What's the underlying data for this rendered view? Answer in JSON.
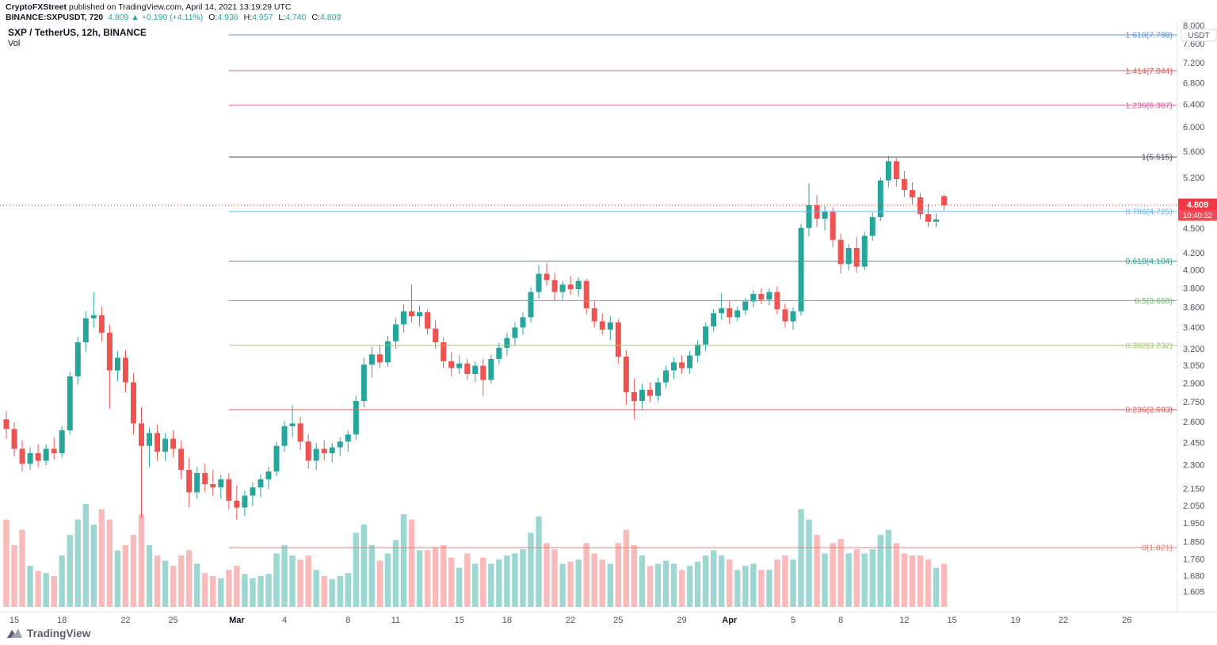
{
  "header": {
    "publisher": "CryptoFXStreet",
    "publish_info": " published on TradingView.com, April 14, 2021 13:19:29 UTC",
    "symbol": {
      "name": "BINANCE:SXPUSDT, 720",
      "last": "4.809",
      "arrow": "▲",
      "change": "+0.190 (+4.11%)",
      "o_label": "O:",
      "open": "4.936",
      "h_label": "H:",
      "high": "4.957",
      "l_label": "L:",
      "low": "4.740",
      "c_label": "C:",
      "close": "4.809"
    }
  },
  "legend": {
    "title": "SXP / TetherUS, 12h, BINANCE",
    "indicator": "Vol"
  },
  "footer": {
    "brand": "TradingView"
  },
  "price_axis": {
    "unit": "USDT",
    "labels": [
      "8.000",
      "7.600",
      "7.200",
      "6.800",
      "6.400",
      "6.000",
      "5.600",
      "5.200",
      "4.500",
      "4.200",
      "4.000",
      "3.800",
      "3.600",
      "3.400",
      "3.200",
      "3.050",
      "2.900",
      "2.750",
      "2.600",
      "2.450",
      "2.300",
      "2.150",
      "2.050",
      "1.950",
      "1.850",
      "1.760",
      "1.680",
      "1.605"
    ]
  },
  "time_axis": {
    "ticks": [
      {
        "t": "15",
        "i": 1
      },
      {
        "t": "18",
        "i": 7
      },
      {
        "t": "22",
        "i": 15
      },
      {
        "t": "25",
        "i": 21
      },
      {
        "t": "Mar",
        "i": 29,
        "m": 1
      },
      {
        "t": "4",
        "i": 35
      },
      {
        "t": "8",
        "i": 43
      },
      {
        "t": "11",
        "i": 49
      },
      {
        "t": "15",
        "i": 57
      },
      {
        "t": "18",
        "i": 63
      },
      {
        "t": "22",
        "i": 71
      },
      {
        "t": "25",
        "i": 77
      },
      {
        "t": "29",
        "i": 85
      },
      {
        "t": "Apr",
        "i": 91,
        "m": 1
      },
      {
        "t": "5",
        "i": 99
      },
      {
        "t": "8",
        "i": 105
      },
      {
        "t": "12",
        "i": 113
      },
      {
        "t": "15",
        "i": 119
      },
      {
        "t": "19",
        "i": 127
      },
      {
        "t": "22",
        "i": 133
      },
      {
        "t": "26",
        "i": 141
      }
    ]
  },
  "price_line": {
    "value": "4.809",
    "countdown": "10:40:32",
    "color": "#f23645"
  },
  "chart_data": {
    "type": "candlestick",
    "title": "SXP / TetherUS, 12h, BINANCE",
    "symbol": "SXP/USDT",
    "exchange": "BINANCE",
    "interval": "12h",
    "scale": "logarithmic",
    "ylim": [
      1.58,
      8.0
    ],
    "start": "2021-02-14 12:00 UTC",
    "end": "2021-04-14 12:00 UTC",
    "last_bar": {
      "open": 4.936,
      "high": 4.957,
      "low": 4.74,
      "close": 4.809
    },
    "colors": {
      "up": "#26a69a",
      "down": "#ef5350",
      "vol_up": "rgba(38,166,154,0.45)",
      "vol_down": "rgba(239,83,80,0.40)"
    },
    "fib_levels": [
      {
        "label": "1.618(7.798)",
        "level": 1.618,
        "price": 7.798,
        "color": "#538ff0"
      },
      {
        "label": "1.414(7.044)",
        "level": 1.414,
        "price": 7.044,
        "color": "#ef5350"
      },
      {
        "label": "1.236(6.387)",
        "level": 1.236,
        "price": 6.387,
        "color": "#e255a2"
      },
      {
        "label": "1(5.515)",
        "level": 1,
        "price": 5.515,
        "color": "#4a4f5a"
      },
      {
        "label": "0.786(4.725)",
        "level": 0.786,
        "price": 4.725,
        "color": "#64b5f6"
      },
      {
        "label": "0.618(4.104)",
        "level": 0.618,
        "price": 4.104,
        "color": "#26a69a"
      },
      {
        "label": "0.5(3.668)",
        "level": 0.5,
        "price": 3.668,
        "color": "#66bb6a"
      },
      {
        "label": "0.382(3.232)",
        "level": 0.382,
        "price": 3.232,
        "color": "#9ccc65"
      },
      {
        "label": "0.236(2.693)",
        "level": 0.236,
        "price": 2.693,
        "color": "#ef5350"
      },
      {
        "label": "0(1.821)",
        "level": 0,
        "price": 1.821,
        "color": "#f7786f"
      }
    ],
    "fib_start_index": 28,
    "candles": [
      [
        2.62,
        2.68,
        2.48,
        2.55,
        0.85
      ],
      [
        2.55,
        2.6,
        2.36,
        2.41,
        0.6
      ],
      [
        2.41,
        2.47,
        2.26,
        2.31,
        0.75
      ],
      [
        2.31,
        2.42,
        2.27,
        2.38,
        0.4
      ],
      [
        2.38,
        2.44,
        2.29,
        2.33,
        0.35
      ],
      [
        2.33,
        2.44,
        2.3,
        2.41,
        0.33
      ],
      [
        2.41,
        2.49,
        2.34,
        2.38,
        0.3
      ],
      [
        2.38,
        2.57,
        2.35,
        2.54,
        0.5
      ],
      [
        2.54,
        3.0,
        2.51,
        2.96,
        0.7
      ],
      [
        2.96,
        3.31,
        2.89,
        3.26,
        0.85
      ],
      [
        3.26,
        3.56,
        3.17,
        3.49,
        1.0
      ],
      [
        3.49,
        3.76,
        3.4,
        3.52,
        0.8
      ],
      [
        3.52,
        3.61,
        3.27,
        3.35,
        0.95
      ],
      [
        3.35,
        3.43,
        2.7,
        3.01,
        0.85
      ],
      [
        3.01,
        3.18,
        2.92,
        3.12,
        0.55
      ],
      [
        3.12,
        3.19,
        2.83,
        2.91,
        0.6
      ],
      [
        2.91,
        2.99,
        2.51,
        2.59,
        0.7
      ],
      [
        2.59,
        2.71,
        1.98,
        2.43,
        0.9
      ],
      [
        2.43,
        2.56,
        2.29,
        2.52,
        0.6
      ],
      [
        2.52,
        2.58,
        2.33,
        2.39,
        0.5
      ],
      [
        2.39,
        2.52,
        2.33,
        2.48,
        0.45
      ],
      [
        2.48,
        2.54,
        2.35,
        2.41,
        0.4
      ],
      [
        2.41,
        2.47,
        2.21,
        2.27,
        0.5
      ],
      [
        2.27,
        2.35,
        2.04,
        2.13,
        0.55
      ],
      [
        2.13,
        2.29,
        2.09,
        2.25,
        0.42
      ],
      [
        2.25,
        2.31,
        2.13,
        2.18,
        0.33
      ],
      [
        2.18,
        2.27,
        2.11,
        2.16,
        0.3
      ],
      [
        2.16,
        2.24,
        2.09,
        2.21,
        0.28
      ],
      [
        2.21,
        2.25,
        2.03,
        2.08,
        0.36
      ],
      [
        2.08,
        2.17,
        1.97,
        2.04,
        0.4
      ],
      [
        2.04,
        2.14,
        1.99,
        2.11,
        0.32
      ],
      [
        2.11,
        2.19,
        2.05,
        2.16,
        0.28
      ],
      [
        2.16,
        2.24,
        2.1,
        2.21,
        0.3
      ],
      [
        2.21,
        2.29,
        2.15,
        2.26,
        0.32
      ],
      [
        2.26,
        2.46,
        2.23,
        2.43,
        0.52
      ],
      [
        2.43,
        2.61,
        2.39,
        2.57,
        0.6
      ],
      [
        2.57,
        2.73,
        2.49,
        2.59,
        0.5
      ],
      [
        2.59,
        2.64,
        2.4,
        2.46,
        0.46
      ],
      [
        2.46,
        2.51,
        2.28,
        2.33,
        0.5
      ],
      [
        2.33,
        2.45,
        2.27,
        2.41,
        0.36
      ],
      [
        2.41,
        2.47,
        2.33,
        2.38,
        0.3
      ],
      [
        2.38,
        2.45,
        2.32,
        2.42,
        0.27
      ],
      [
        2.42,
        2.49,
        2.36,
        2.46,
        0.3
      ],
      [
        2.46,
        2.54,
        2.39,
        2.51,
        0.33
      ],
      [
        2.51,
        2.8,
        2.47,
        2.76,
        0.72
      ],
      [
        2.76,
        3.12,
        2.71,
        3.06,
        0.8
      ],
      [
        3.06,
        3.22,
        2.95,
        3.15,
        0.6
      ],
      [
        3.15,
        3.24,
        3.03,
        3.08,
        0.45
      ],
      [
        3.08,
        3.32,
        3.04,
        3.27,
        0.52
      ],
      [
        3.27,
        3.49,
        3.2,
        3.43,
        0.65
      ],
      [
        3.43,
        3.63,
        3.35,
        3.56,
        0.9
      ],
      [
        3.56,
        3.84,
        3.45,
        3.51,
        0.85
      ],
      [
        3.51,
        3.62,
        3.41,
        3.55,
        0.55
      ],
      [
        3.55,
        3.58,
        3.33,
        3.39,
        0.55
      ],
      [
        3.39,
        3.47,
        3.2,
        3.26,
        0.58
      ],
      [
        3.26,
        3.31,
        3.03,
        3.09,
        0.6
      ],
      [
        3.09,
        3.17,
        2.96,
        3.03,
        0.48
      ],
      [
        3.03,
        3.14,
        2.98,
        3.07,
        0.38
      ],
      [
        3.07,
        3.11,
        2.93,
        2.98,
        0.52
      ],
      [
        2.98,
        3.09,
        2.91,
        3.05,
        0.42
      ],
      [
        3.05,
        3.11,
        2.8,
        2.93,
        0.48
      ],
      [
        2.93,
        3.15,
        2.9,
        3.11,
        0.42
      ],
      [
        3.11,
        3.25,
        3.06,
        3.21,
        0.46
      ],
      [
        3.21,
        3.35,
        3.14,
        3.3,
        0.5
      ],
      [
        3.3,
        3.45,
        3.23,
        3.4,
        0.52
      ],
      [
        3.4,
        3.55,
        3.33,
        3.5,
        0.56
      ],
      [
        3.5,
        3.81,
        3.45,
        3.76,
        0.72
      ],
      [
        3.76,
        4.06,
        3.69,
        3.96,
        0.88
      ],
      [
        3.96,
        4.08,
        3.83,
        3.89,
        0.62
      ],
      [
        3.89,
        3.97,
        3.67,
        3.76,
        0.56
      ],
      [
        3.76,
        3.88,
        3.68,
        3.84,
        0.42
      ],
      [
        3.84,
        3.94,
        3.73,
        3.79,
        0.44
      ],
      [
        3.79,
        3.92,
        3.71,
        3.88,
        0.46
      ],
      [
        3.88,
        3.9,
        3.53,
        3.59,
        0.62
      ],
      [
        3.59,
        3.67,
        3.4,
        3.46,
        0.52
      ],
      [
        3.46,
        3.54,
        3.33,
        3.38,
        0.46
      ],
      [
        3.38,
        3.51,
        3.28,
        3.45,
        0.42
      ],
      [
        3.45,
        3.48,
        3.07,
        3.13,
        0.62
      ],
      [
        3.13,
        3.19,
        2.73,
        2.83,
        0.75
      ],
      [
        2.83,
        2.94,
        2.62,
        2.76,
        0.6
      ],
      [
        2.76,
        2.9,
        2.7,
        2.85,
        0.5
      ],
      [
        2.85,
        2.91,
        2.75,
        2.8,
        0.4
      ],
      [
        2.8,
        2.95,
        2.76,
        2.91,
        0.42
      ],
      [
        2.91,
        3.05,
        2.86,
        3.01,
        0.45
      ],
      [
        3.01,
        3.12,
        2.94,
        3.08,
        0.42
      ],
      [
        3.08,
        3.14,
        2.98,
        3.03,
        0.36
      ],
      [
        3.03,
        3.18,
        2.98,
        3.14,
        0.4
      ],
      [
        3.14,
        3.28,
        3.08,
        3.24,
        0.44
      ],
      [
        3.24,
        3.45,
        3.18,
        3.41,
        0.5
      ],
      [
        3.41,
        3.58,
        3.36,
        3.54,
        0.55
      ],
      [
        3.54,
        3.75,
        3.48,
        3.59,
        0.5
      ],
      [
        3.59,
        3.66,
        3.43,
        3.5,
        0.46
      ],
      [
        3.5,
        3.61,
        3.46,
        3.57,
        0.36
      ],
      [
        3.57,
        3.7,
        3.52,
        3.66,
        0.4
      ],
      [
        3.66,
        3.78,
        3.6,
        3.74,
        0.42
      ],
      [
        3.74,
        3.8,
        3.63,
        3.68,
        0.36
      ],
      [
        3.68,
        3.8,
        3.62,
        3.76,
        0.36
      ],
      [
        3.76,
        3.82,
        3.53,
        3.58,
        0.46
      ],
      [
        3.58,
        3.64,
        3.4,
        3.46,
        0.5
      ],
      [
        3.46,
        3.6,
        3.38,
        3.56,
        0.46
      ],
      [
        3.56,
        4.56,
        3.52,
        4.51,
        0.95
      ],
      [
        4.51,
        5.12,
        4.4,
        4.81,
        0.85
      ],
      [
        4.81,
        4.95,
        4.52,
        4.63,
        0.7
      ],
      [
        4.63,
        4.8,
        4.48,
        4.72,
        0.52
      ],
      [
        4.72,
        4.78,
        4.27,
        4.36,
        0.62
      ],
      [
        4.36,
        4.44,
        3.96,
        4.07,
        0.66
      ],
      [
        4.07,
        4.31,
        4.0,
        4.26,
        0.52
      ],
      [
        4.26,
        4.4,
        3.97,
        4.04,
        0.56
      ],
      [
        4.04,
        4.46,
        4.0,
        4.41,
        0.52
      ],
      [
        4.41,
        4.71,
        4.35,
        4.65,
        0.56
      ],
      [
        4.65,
        5.21,
        4.6,
        5.16,
        0.7
      ],
      [
        5.16,
        5.53,
        5.05,
        5.45,
        0.75
      ],
      [
        5.45,
        5.5,
        5.07,
        5.18,
        0.62
      ],
      [
        5.18,
        5.3,
        4.92,
        5.02,
        0.52
      ],
      [
        5.02,
        5.13,
        4.82,
        4.92,
        0.5
      ],
      [
        4.92,
        4.98,
        4.62,
        4.69,
        0.5
      ],
      [
        4.69,
        4.83,
        4.52,
        4.59,
        0.46
      ],
      [
        4.59,
        4.7,
        4.52,
        4.62,
        0.38
      ],
      [
        4.936,
        4.957,
        4.74,
        4.809,
        0.42
      ]
    ]
  }
}
